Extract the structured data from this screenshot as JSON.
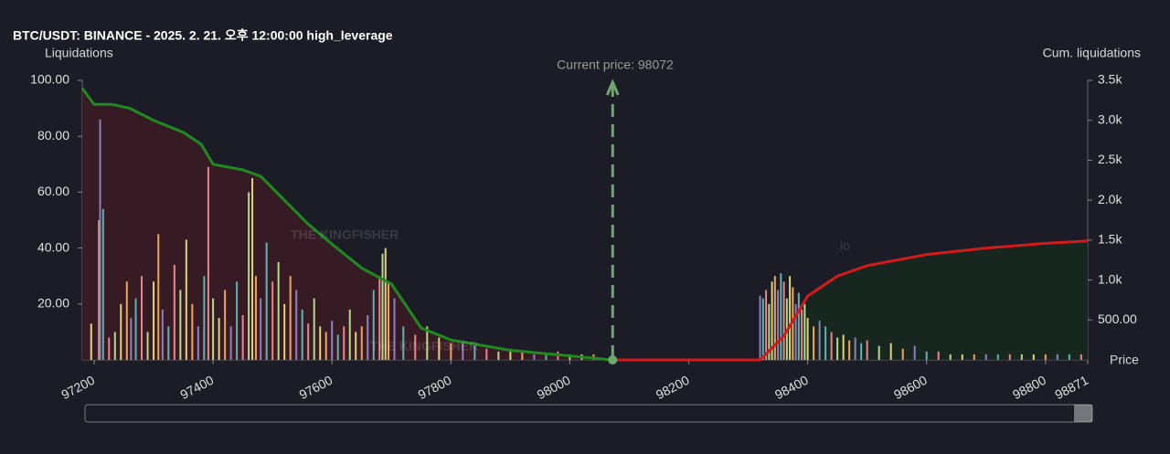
{
  "chart_data": {
    "type": "liquidation_map",
    "title": "BTC/USDT: BINANCE - 2025. 2. 21. 오후 12:00:00 high_leverage",
    "y_label": "Liquidations",
    "y2_label": "Cum. liquidations",
    "x_label": "Price",
    "annotation": "Current price: 98072",
    "current_price": 98072,
    "watermark": "THE KINGFISHER",
    "watermark_suffix": ".io",
    "xlim": [
      97180,
      98871
    ],
    "xticks": [
      97200,
      97400,
      97600,
      97800,
      98000,
      98200,
      98400,
      98600,
      98800,
      98871
    ],
    "ylim": [
      0,
      100
    ],
    "yticks": [
      {
        "value": 20,
        "label": "20.00"
      },
      {
        "value": 40,
        "label": "40.00"
      },
      {
        "value": 60,
        "label": "60.00"
      },
      {
        "value": 80,
        "label": "80.00"
      },
      {
        "value": 100,
        "label": "100.00"
      }
    ],
    "y2lim": [
      0,
      3500
    ],
    "y2ticks": [
      {
        "value": 500,
        "label": "500.00"
      },
      {
        "value": 1000,
        "label": "1.0k"
      },
      {
        "value": 1500,
        "label": "1.5k"
      },
      {
        "value": 2000,
        "label": "2.0k"
      },
      {
        "value": 2500,
        "label": "2.5k"
      },
      {
        "value": 3000,
        "label": "3.0k"
      },
      {
        "value": 3500,
        "label": "3.5k"
      }
    ],
    "palette": [
      "#e0d27a",
      "#f0a35a",
      "#8e7fc0",
      "#5fb3b3",
      "#e8868a",
      "#b6d98a"
    ],
    "bars": {
      "x": [
        97195,
        97208,
        97210,
        97215,
        97225,
        97235,
        97245,
        97255,
        97262,
        97270,
        97280,
        97290,
        97300,
        97308,
        97315,
        97325,
        97335,
        97345,
        97355,
        97365,
        97375,
        97385,
        97392,
        97400,
        97410,
        97420,
        97430,
        97440,
        97450,
        97460,
        97466,
        97472,
        97480,
        97490,
        97500,
        97510,
        97520,
        97530,
        97540,
        97550,
        97560,
        97570,
        97580,
        97590,
        97600,
        97610,
        97620,
        97630,
        97640,
        97650,
        97660,
        97670,
        97680,
        97685,
        97690,
        97695,
        97705,
        97720,
        97740,
        97760,
        97780,
        97800,
        97820,
        97840,
        97860,
        97880,
        97900,
        97920,
        97940,
        97960,
        97980,
        98000,
        98020,
        98040,
        98320,
        98325,
        98330,
        98335,
        98340,
        98345,
        98350,
        98355,
        98360,
        98365,
        98370,
        98375,
        98380,
        98385,
        98390,
        98395,
        98400,
        98410,
        98420,
        98430,
        98440,
        98450,
        98460,
        98470,
        98480,
        98490,
        98500,
        98520,
        98540,
        98560,
        98580,
        98600,
        98620,
        98640,
        98660,
        98680,
        98700,
        98720,
        98740,
        98760,
        98780,
        98800,
        98820,
        98840,
        98860
      ],
      "values": [
        13,
        50,
        86,
        54,
        8,
        10,
        20,
        28,
        15,
        22,
        30,
        10,
        28,
        45,
        18,
        12,
        34,
        25,
        43,
        20,
        12,
        30,
        69,
        22,
        15,
        25,
        12,
        28,
        16,
        60,
        65,
        30,
        22,
        42,
        28,
        35,
        20,
        30,
        25,
        18,
        13,
        22,
        12,
        10,
        14,
        9,
        12,
        18,
        10,
        12,
        16,
        25,
        30,
        38,
        40,
        28,
        22,
        12,
        9,
        12,
        8,
        6,
        7,
        5,
        4,
        3,
        4,
        3,
        2,
        2,
        3,
        2,
        2,
        2,
        23,
        22,
        25,
        20,
        28,
        30,
        25,
        31,
        28,
        22,
        30,
        26,
        20,
        24,
        18,
        20,
        15,
        12,
        14,
        12,
        10,
        8,
        9,
        7,
        8,
        6,
        7,
        5,
        6,
        4,
        5,
        3,
        3,
        2,
        2,
        2,
        2,
        2,
        2,
        2,
        2,
        2,
        2,
        2,
        2
      ]
    },
    "cum_lines": [
      {
        "color": "#1f8a1f",
        "axis": "y2",
        "fill": "#3a1c26",
        "x": [
          97180,
          97200,
          97230,
          97260,
          97300,
          97350,
          97380,
          97400,
          97450,
          97480,
          97520,
          97560,
          97600,
          97650,
          97700,
          97750,
          97800,
          97900,
          98000,
          98072
        ],
        "values": [
          3400,
          3200,
          3200,
          3150,
          3000,
          2850,
          2700,
          2450,
          2380,
          2300,
          2000,
          1700,
          1450,
          1150,
          950,
          400,
          250,
          120,
          50,
          0
        ]
      },
      {
        "color": "#d41a1a",
        "axis": "y2",
        "fill": "#17281f",
        "x": [
          98072,
          98200,
          98320,
          98360,
          98400,
          98450,
          98500,
          98600,
          98700,
          98800,
          98871
        ],
        "values": [
          0,
          0,
          0,
          300,
          800,
          1050,
          1180,
          1320,
          1400,
          1460,
          1490
        ]
      }
    ]
  }
}
